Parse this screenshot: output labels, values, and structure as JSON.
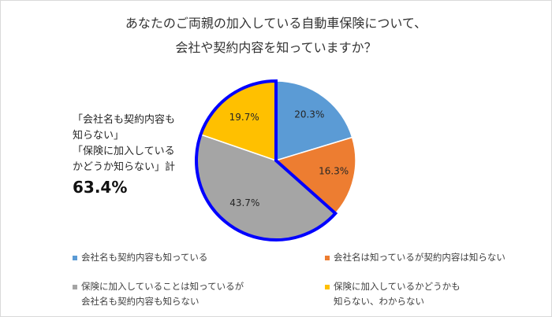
{
  "title": {
    "line1": "あなたのご両親の加入している自動車保険について、",
    "line2": "会社や契約内容を知っていますか？"
  },
  "callout": {
    "line1": "「会社名も契約内容も",
    "line2": "知らない」",
    "line3": "「保険に加入している",
    "line4": "かどうか知らない」計",
    "total": "63.4%"
  },
  "colors": {
    "blue": "#5b9bd5",
    "orange": "#ed7d31",
    "gray": "#a5a5a5",
    "yellow": "#ffc000",
    "highlight_outline": "#0000ff"
  },
  "legend": [
    {
      "label": "会社名も契約内容も知っている",
      "color": "#5b9bd5"
    },
    {
      "label": "会社名は知っているが契約内容は知らない",
      "color": "#ed7d31"
    },
    {
      "label": "保険に加入していることは知っているが\n会社名も契約内容も知らない",
      "color": "#a5a5a5"
    },
    {
      "label": "保険に加入しているかどうかも\n知らない、わからない",
      "color": "#ffc000"
    }
  ],
  "chart_data": {
    "type": "pie",
    "title": "あなたのご両親の加入している自動車保険について、会社や契約内容を知っていますか？",
    "categories": [
      "会社名も契約内容も知っている",
      "会社名は知っているが契約内容は知らない",
      "保険に加入していることは知っているが会社名も契約内容も知らない",
      "保険に加入しているかどうかも知らない、わからない"
    ],
    "values": [
      20.3,
      16.3,
      43.7,
      19.7
    ],
    "data_labels": [
      "20.3%",
      "16.3%",
      "43.7%",
      "19.7%"
    ],
    "colors": [
      "#5b9bd5",
      "#ed7d31",
      "#a5a5a5",
      "#ffc000"
    ],
    "start_angle": "12 o'clock, clockwise",
    "legend_position": "bottom",
    "annotation": "「会社名も契約内容も知らない」「保険に加入しているかどうか知らない」計 63.4%",
    "highlighted_slices": [
      2,
      3
    ],
    "highlighted_total": 63.4
  }
}
